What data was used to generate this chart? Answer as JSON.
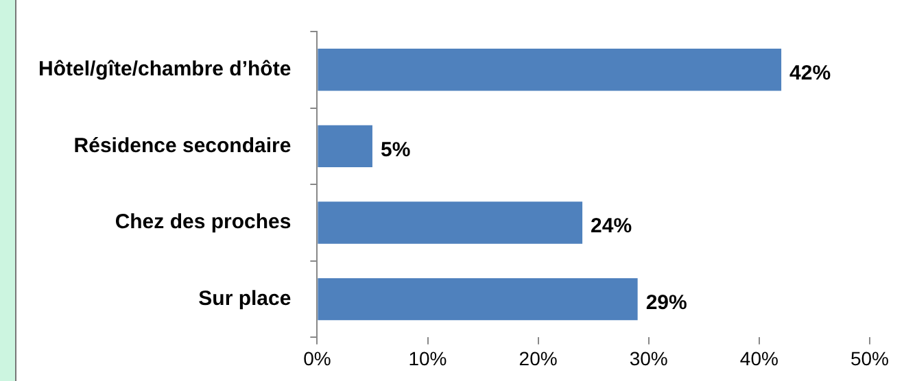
{
  "chart_data": {
    "type": "bar",
    "orientation": "horizontal",
    "categories": [
      "Hôtel/gîte/chambre d’hôte",
      "Résidence secondaire",
      "Chez des proches",
      "Sur place"
    ],
    "values": [
      42,
      5,
      24,
      29
    ],
    "value_labels": [
      "42%",
      "5%",
      "24%",
      "29%"
    ],
    "color": "#4f81bd",
    "xlim": [
      0,
      50
    ],
    "xticks": [
      {
        "value": 0,
        "label": "0%"
      },
      {
        "value": 10,
        "label": "10%"
      },
      {
        "value": 20,
        "label": "20%"
      },
      {
        "value": 30,
        "label": "30%"
      },
      {
        "value": 40,
        "label": "40%"
      },
      {
        "value": 50,
        "label": "50%"
      }
    ],
    "grid": false
  }
}
